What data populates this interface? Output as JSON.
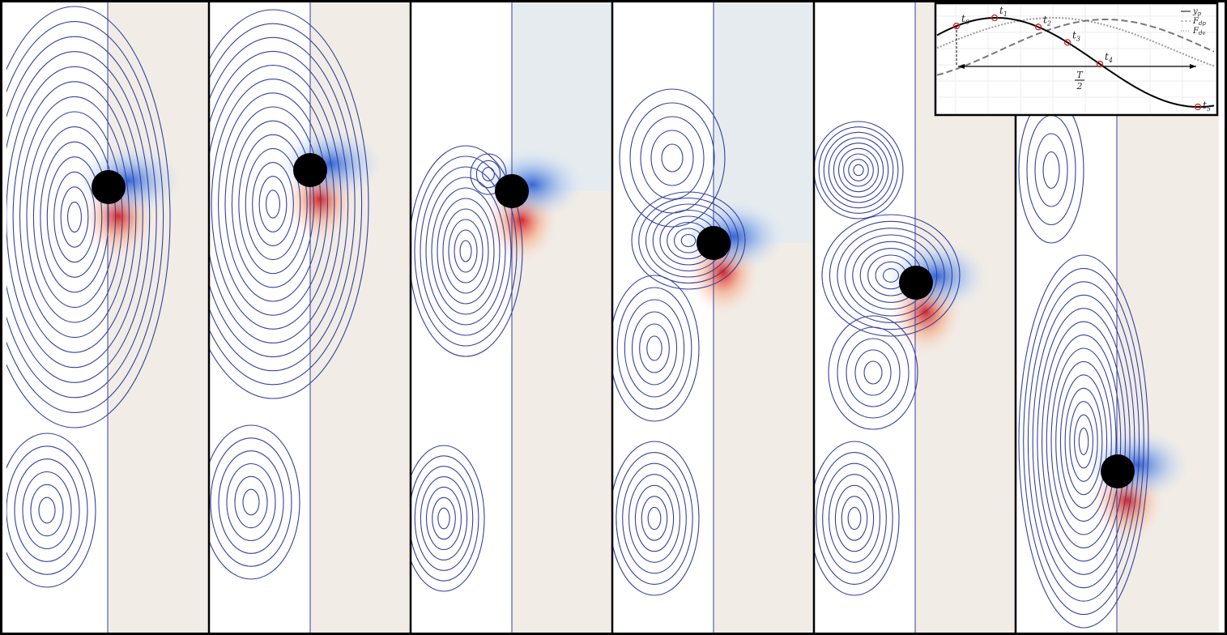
{
  "inset": {
    "markers": [
      {
        "label": "t",
        "sub": "0"
      },
      {
        "label": "t",
        "sub": "1"
      },
      {
        "label": "t",
        "sub": "2"
      },
      {
        "label": "t",
        "sub": "3"
      },
      {
        "label": "t",
        "sub": "4"
      },
      {
        "label": "t",
        "sub": "5"
      }
    ],
    "legend": [
      {
        "label": "y",
        "sub": "p"
      },
      {
        "label": "F",
        "sub": "dp"
      },
      {
        "label": "F",
        "sub": "dv"
      }
    ],
    "period": {
      "numerator": "T",
      "denominator": "2"
    }
  }
}
